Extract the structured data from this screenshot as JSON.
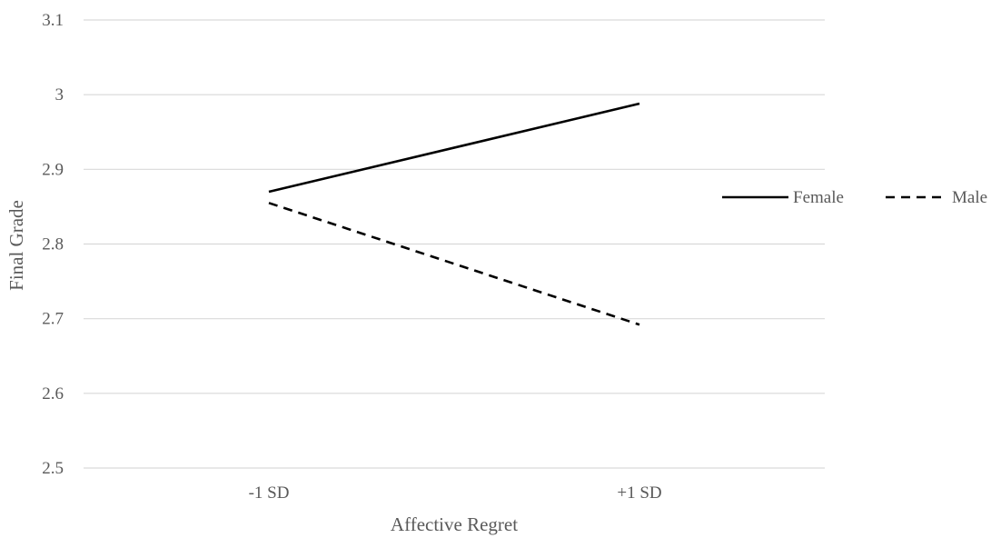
{
  "chart_data": {
    "type": "line",
    "title": "",
    "xlabel": "Affective Regret",
    "ylabel": "Final Grade",
    "categories": [
      "-1 SD",
      "+1 SD"
    ],
    "ylim": [
      2.5,
      3.1
    ],
    "yticks": [
      "2.5",
      "2.6",
      "2.7",
      "2.8",
      "2.9",
      "3",
      "3.1"
    ],
    "ytick_values": [
      2.5,
      2.6,
      2.7,
      2.8,
      2.9,
      3.0,
      3.1
    ],
    "grid": "horizontal",
    "legend_position": "right",
    "series": [
      {
        "name": "Female",
        "values": [
          2.87,
          2.988
        ],
        "style": "solid",
        "color": "#000000"
      },
      {
        "name": "Male",
        "values": [
          2.855,
          2.692
        ],
        "style": "dashed",
        "color": "#000000"
      }
    ],
    "gridline_color": "#d9d9d9",
    "text_color": "#595959"
  }
}
